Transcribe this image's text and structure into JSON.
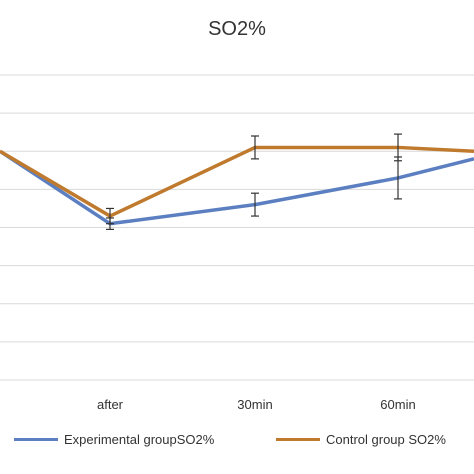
{
  "chart_data": {
    "type": "line",
    "title": "SO2%",
    "categories": [
      "",
      "after",
      "30min",
      "60min",
      ""
    ],
    "series": [
      {
        "name": "Experimental groupSO2%",
        "color": "#5b7fc0",
        "values": [
          99.0,
          97.1,
          97.6,
          98.3,
          98.8
        ],
        "error": [
          0,
          0.15,
          0.3,
          0.55,
          0
        ]
      },
      {
        "name": "Control group SO2%",
        "color": "#c07a2e",
        "values": [
          99.0,
          97.3,
          99.1,
          99.1,
          99.0
        ],
        "error": [
          0,
          0.2,
          0.3,
          0.35,
          0
        ]
      }
    ],
    "ylim": [
      93,
      101
    ],
    "grid": true,
    "legend": "bottom"
  }
}
